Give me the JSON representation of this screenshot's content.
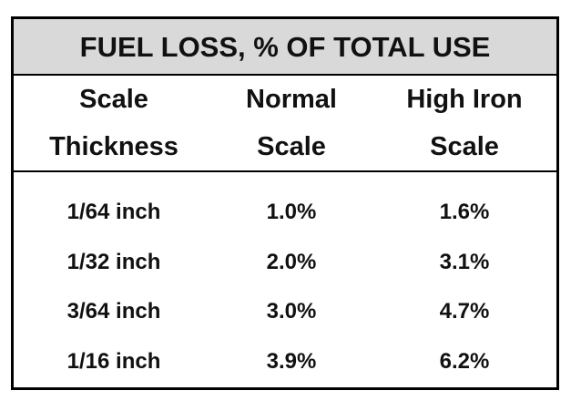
{
  "table": {
    "title": "FUEL LOSS, % OF TOTAL USE",
    "header": [
      [
        "Scale",
        "Thickness"
      ],
      [
        "Normal",
        "Scale"
      ],
      [
        "High Iron",
        "Scale"
      ]
    ],
    "rows": [
      [
        "1/64 inch",
        "1.0%",
        "1.6%"
      ],
      [
        "1/32 inch",
        "2.0%",
        "3.1%"
      ],
      [
        "3/64 inch",
        "3.0%",
        "4.7%"
      ],
      [
        "1/16 inch",
        "3.9%",
        "6.2%"
      ]
    ]
  }
}
